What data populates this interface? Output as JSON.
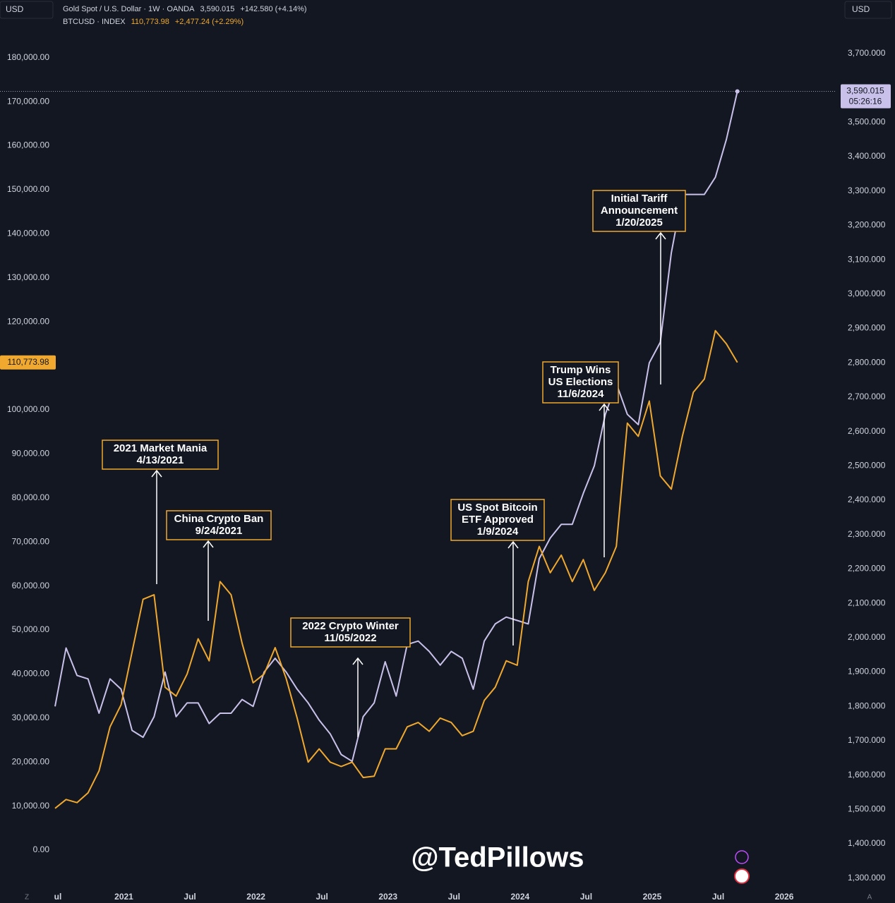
{
  "chart_data": {
    "type": "line",
    "currency_left": "USD",
    "currency_right": "USD",
    "x": [
      "2020-07",
      "2020-08",
      "2020-09",
      "2020-10",
      "2020-11",
      "2020-12",
      "2021-01",
      "2021-02",
      "2021-03",
      "2021-04",
      "2021-05",
      "2021-06",
      "2021-07",
      "2021-08",
      "2021-09",
      "2021-10",
      "2021-11",
      "2021-12",
      "2022-01",
      "2022-02",
      "2022-03",
      "2022-04",
      "2022-05",
      "2022-06",
      "2022-07",
      "2022-08",
      "2022-09",
      "2022-10",
      "2022-11",
      "2022-12",
      "2023-01",
      "2023-02",
      "2023-03",
      "2023-04",
      "2023-05",
      "2023-06",
      "2023-07",
      "2023-08",
      "2023-09",
      "2023-10",
      "2023-11",
      "2023-12",
      "2024-01",
      "2024-02",
      "2024-03",
      "2024-04",
      "2024-05",
      "2024-06",
      "2024-07",
      "2024-08",
      "2024-09",
      "2024-10",
      "2024-11",
      "2024-12",
      "2025-01",
      "2025-02",
      "2025-03",
      "2025-04",
      "2025-05",
      "2025-06",
      "2025-07",
      "2025-08",
      "2025-09"
    ],
    "xlim": [
      "2020-02",
      "2026-06"
    ],
    "xticks": [
      {
        "value": "2020-07",
        "label": "ul"
      },
      {
        "value": "2021-01",
        "label": "2021"
      },
      {
        "value": "2021-07",
        "label": "Jul"
      },
      {
        "value": "2022-01",
        "label": "2022"
      },
      {
        "value": "2022-07",
        "label": "Jul"
      },
      {
        "value": "2023-01",
        "label": "2023"
      },
      {
        "value": "2023-07",
        "label": "Jul"
      },
      {
        "value": "2024-01",
        "label": "2024"
      },
      {
        "value": "2024-07",
        "label": "Jul"
      },
      {
        "value": "2025-01",
        "label": "2025"
      },
      {
        "value": "2025-07",
        "label": "Jul"
      },
      {
        "value": "2026-01",
        "label": "2026"
      }
    ],
    "ylim": [
      -8000,
      193100
    ],
    "yticks": [
      {
        "value": 0,
        "label": "0.00"
      },
      {
        "value": 10000,
        "label": "10,000.00"
      },
      {
        "value": 20000,
        "label": "20,000.00"
      },
      {
        "value": 30000,
        "label": "30,000.00"
      },
      {
        "value": 40000,
        "label": "40,000.00"
      },
      {
        "value": 50000,
        "label": "50,000.00"
      },
      {
        "value": 60000,
        "label": "60,000.00"
      },
      {
        "value": 70000,
        "label": "70,000.00"
      },
      {
        "value": 80000,
        "label": "80,000.00"
      },
      {
        "value": 90000,
        "label": "90,000.00"
      },
      {
        "value": 100000,
        "label": "100,000.00"
      },
      {
        "value": 120000,
        "label": "120,000.00"
      },
      {
        "value": 130000,
        "label": "130,000.00"
      },
      {
        "value": 140000,
        "label": "140,000.00"
      },
      {
        "value": 150000,
        "label": "150,000.00"
      },
      {
        "value": 160000,
        "label": "160,000.00"
      },
      {
        "value": 170000,
        "label": "170,000.00"
      },
      {
        "value": 180000,
        "label": "180,000.00"
      }
    ],
    "y2lim": [
      1279,
      3856
    ],
    "y2ticks": [
      {
        "value": 1300,
        "label": "1,300.000"
      },
      {
        "value": 1400,
        "label": "1,400.000"
      },
      {
        "value": 1500,
        "label": "1,500.000"
      },
      {
        "value": 1600,
        "label": "1,600.000"
      },
      {
        "value": 1700,
        "label": "1,700.000"
      },
      {
        "value": 1800,
        "label": "1,800.000"
      },
      {
        "value": 1900,
        "label": "1,900.000"
      },
      {
        "value": 2000,
        "label": "2,000.000"
      },
      {
        "value": 2100,
        "label": "2,100.000"
      },
      {
        "value": 2200,
        "label": "2,200.000"
      },
      {
        "value": 2300,
        "label": "2,300.000"
      },
      {
        "value": 2400,
        "label": "2,400.000"
      },
      {
        "value": 2500,
        "label": "2,500.000"
      },
      {
        "value": 2600,
        "label": "2,600.000"
      },
      {
        "value": 2700,
        "label": "2,700.000"
      },
      {
        "value": 2800,
        "label": "2,800.000"
      },
      {
        "value": 2900,
        "label": "2,900.000"
      },
      {
        "value": 3000,
        "label": "3,000.000"
      },
      {
        "value": 3100,
        "label": "3,100.000"
      },
      {
        "value": 3200,
        "label": "3,200.000"
      },
      {
        "value": 3300,
        "label": "3,300.000"
      },
      {
        "value": 3400,
        "label": "3,400.000"
      },
      {
        "value": 3500,
        "label": "3,500.000"
      },
      {
        "value": 3700,
        "label": "3,700.000"
      }
    ],
    "grid": false,
    "series": [
      {
        "name": "Gold Spot / U.S. Dollar · 1W · OANDA",
        "color": "#c9c1ea",
        "axis": "y2",
        "last_label": "3,590.015",
        "change": "+142.580 (+4.14%)",
        "countdown": "05:26:16",
        "values": [
          1800,
          1970,
          1890,
          1880,
          1780,
          1880,
          1850,
          1730,
          1710,
          1770,
          1900,
          1770,
          1810,
          1810,
          1750,
          1780,
          1780,
          1820,
          1800,
          1900,
          1940,
          1900,
          1850,
          1810,
          1760,
          1720,
          1660,
          1640,
          1770,
          1810,
          1930,
          1830,
          1980,
          1990,
          1960,
          1920,
          1960,
          1940,
          1850,
          1990,
          2040,
          2060,
          2050,
          2040,
          2230,
          2290,
          2330,
          2330,
          2420,
          2500,
          2650,
          2740,
          2650,
          2620,
          2800,
          2860,
          3120,
          3290,
          3290,
          3290,
          3340,
          3450,
          3590.015
        ]
      },
      {
        "name": "BTCUSD · INDEX",
        "color": "#f0a92e",
        "axis": "y",
        "last_label": "110,773.98",
        "change": "+2,477.24 (+2.29%)",
        "values": [
          9500,
          11500,
          10800,
          13000,
          18000,
          28000,
          33000,
          45000,
          57000,
          58000,
          37000,
          35000,
          40000,
          48000,
          43000,
          61000,
          58000,
          47000,
          38000,
          40000,
          46000,
          39000,
          30000,
          20000,
          23000,
          20000,
          19000,
          20000,
          16500,
          16800,
          23000,
          23000,
          28000,
          29000,
          27000,
          30000,
          29000,
          26000,
          27000,
          34000,
          37000,
          43000,
          42000,
          61000,
          69000,
          63000,
          67000,
          61000,
          66000,
          59000,
          63000,
          69000,
          97000,
          94000,
          102000,
          85000,
          82000,
          94000,
          104000,
          107000,
          118000,
          115000,
          110773.98
        ]
      }
    ],
    "annotations": [
      {
        "lines": [
          "2021 Market Mania",
          "4/13/2021"
        ]
      },
      {
        "lines": [
          "China Crypto Ban",
          "9/24/2021"
        ]
      },
      {
        "lines": [
          "2022 Crypto Winter",
          "11/05/2022"
        ]
      },
      {
        "lines": [
          "US Spot Bitcoin",
          "ETF Approved",
          "1/9/2024"
        ]
      },
      {
        "lines": [
          "Trump Wins",
          "US Elections",
          "11/6/2024"
        ]
      },
      {
        "lines": [
          "Initial Tariff",
          "Announcement",
          "1/20/2025"
        ]
      }
    ],
    "watermark": "@TedPillows",
    "corner_labels": [
      "Z",
      "A"
    ]
  }
}
